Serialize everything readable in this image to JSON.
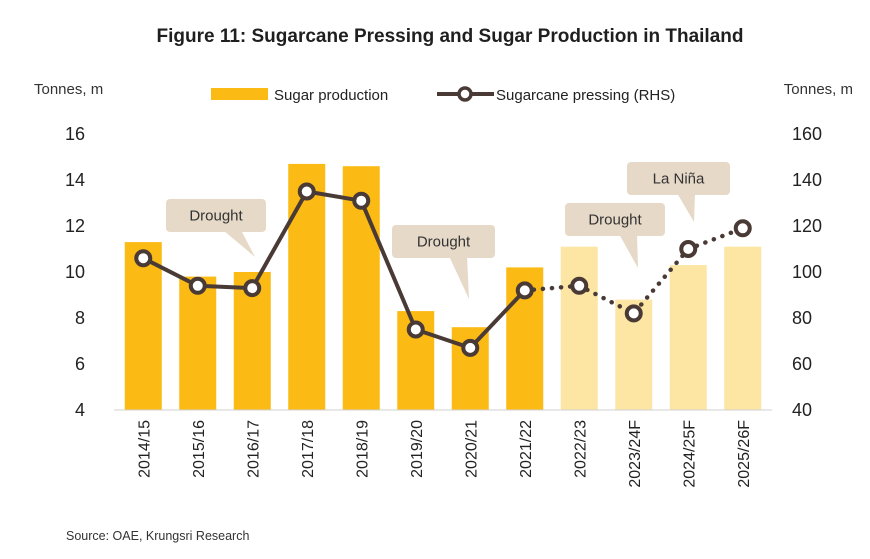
{
  "chart_data": {
    "type": "bar+line",
    "title": "Figure 11: Sugarcane Pressing and Sugar Production in Thailand",
    "y_left_label": "Tonnes, m",
    "y_right_label": "Tonnes, m",
    "y_left_ticks": [
      "4",
      "6",
      "8",
      "10",
      "12",
      "14",
      "16"
    ],
    "y_right_ticks": [
      "40",
      "60",
      "80",
      "100",
      "120",
      "140",
      "160"
    ],
    "y_left_range": [
      4,
      16
    ],
    "y_right_range": [
      40,
      160
    ],
    "categories": [
      "2014/15",
      "2015/16",
      "2016/17",
      "2017/18",
      "2018/19",
      "2019/20",
      "2020/21",
      "2021/22",
      "2022/23",
      "2023/24F",
      "2024/25F",
      "2025/26F"
    ],
    "series": [
      {
        "name": "Sugar production",
        "axis": "left",
        "values": [
          11.3,
          9.8,
          10.0,
          14.7,
          14.6,
          8.3,
          7.6,
          10.2,
          11.1,
          8.8,
          10.3,
          11.1
        ],
        "forecast_from_index": 8,
        "color": "#FBBA14",
        "forecast_color": "#FDE6A3"
      },
      {
        "name": "Sugarcane pressing (RHS)",
        "axis": "right",
        "values": [
          106,
          94,
          93,
          135,
          131,
          75,
          67,
          92,
          94,
          82,
          110,
          119
        ],
        "dotted_from_index": 7,
        "color": "#4A3A36"
      }
    ],
    "annotations": [
      {
        "text": "Drought",
        "category_index": 2
      },
      {
        "text": "Drought",
        "category_index": 6
      },
      {
        "text": "Drought",
        "category_index": 9
      },
      {
        "text": "La Niña",
        "category_index": 10
      }
    ],
    "legend_position": "top-center"
  },
  "source": "Source: OAE, Krungsri Research"
}
